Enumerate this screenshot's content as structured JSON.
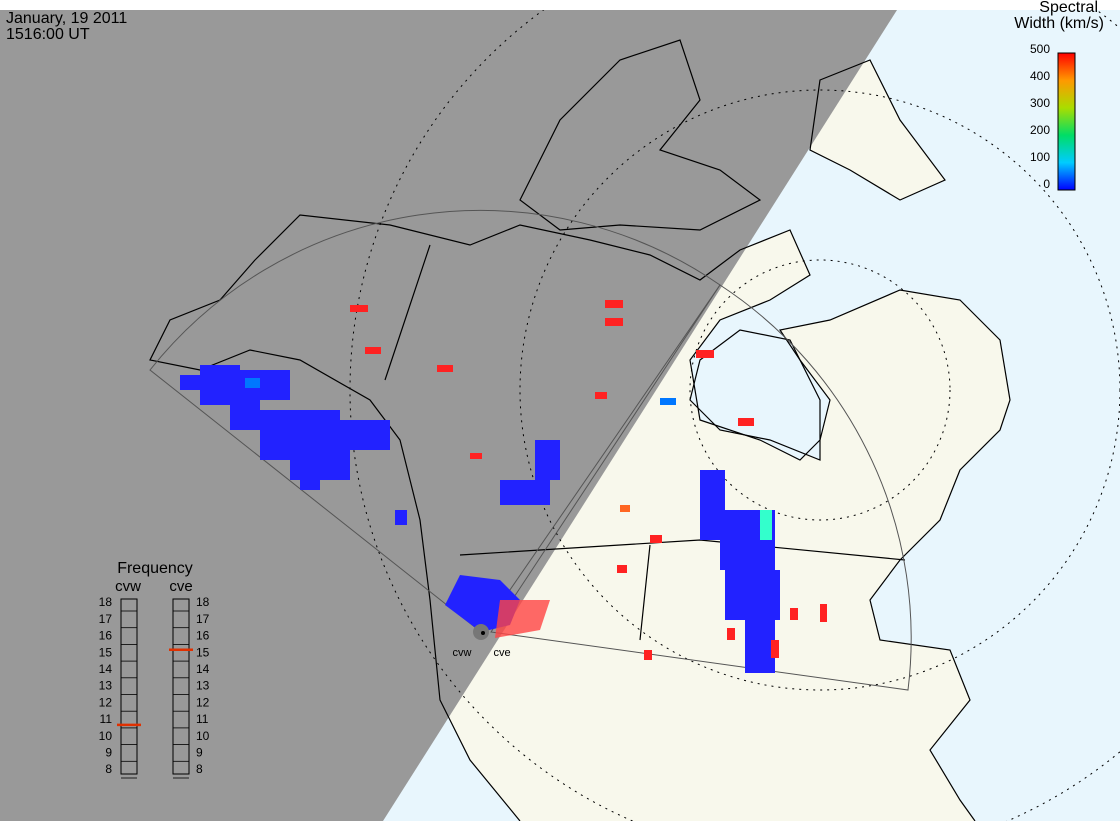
{
  "header": {
    "date": "January, 19 2011",
    "time": "1516:00 UT"
  },
  "colorbar": {
    "title": [
      "Spectral",
      "Width (km/s)"
    ],
    "ticks": [
      0,
      100,
      200,
      300,
      400,
      500
    ]
  },
  "frequency": {
    "title": "Frequency",
    "radars": [
      {
        "name": "cvw",
        "ticks": [
          8,
          9,
          10,
          11,
          12,
          13,
          14,
          15,
          16,
          17,
          18
        ],
        "value": 10.7
      },
      {
        "name": "cve",
        "ticks": [
          8,
          9,
          10,
          11,
          12,
          13,
          14,
          15,
          16,
          17,
          18
        ],
        "value": 15.2
      }
    ]
  },
  "map": {
    "radar_labels": [
      "cvw",
      "cve"
    ]
  }
}
